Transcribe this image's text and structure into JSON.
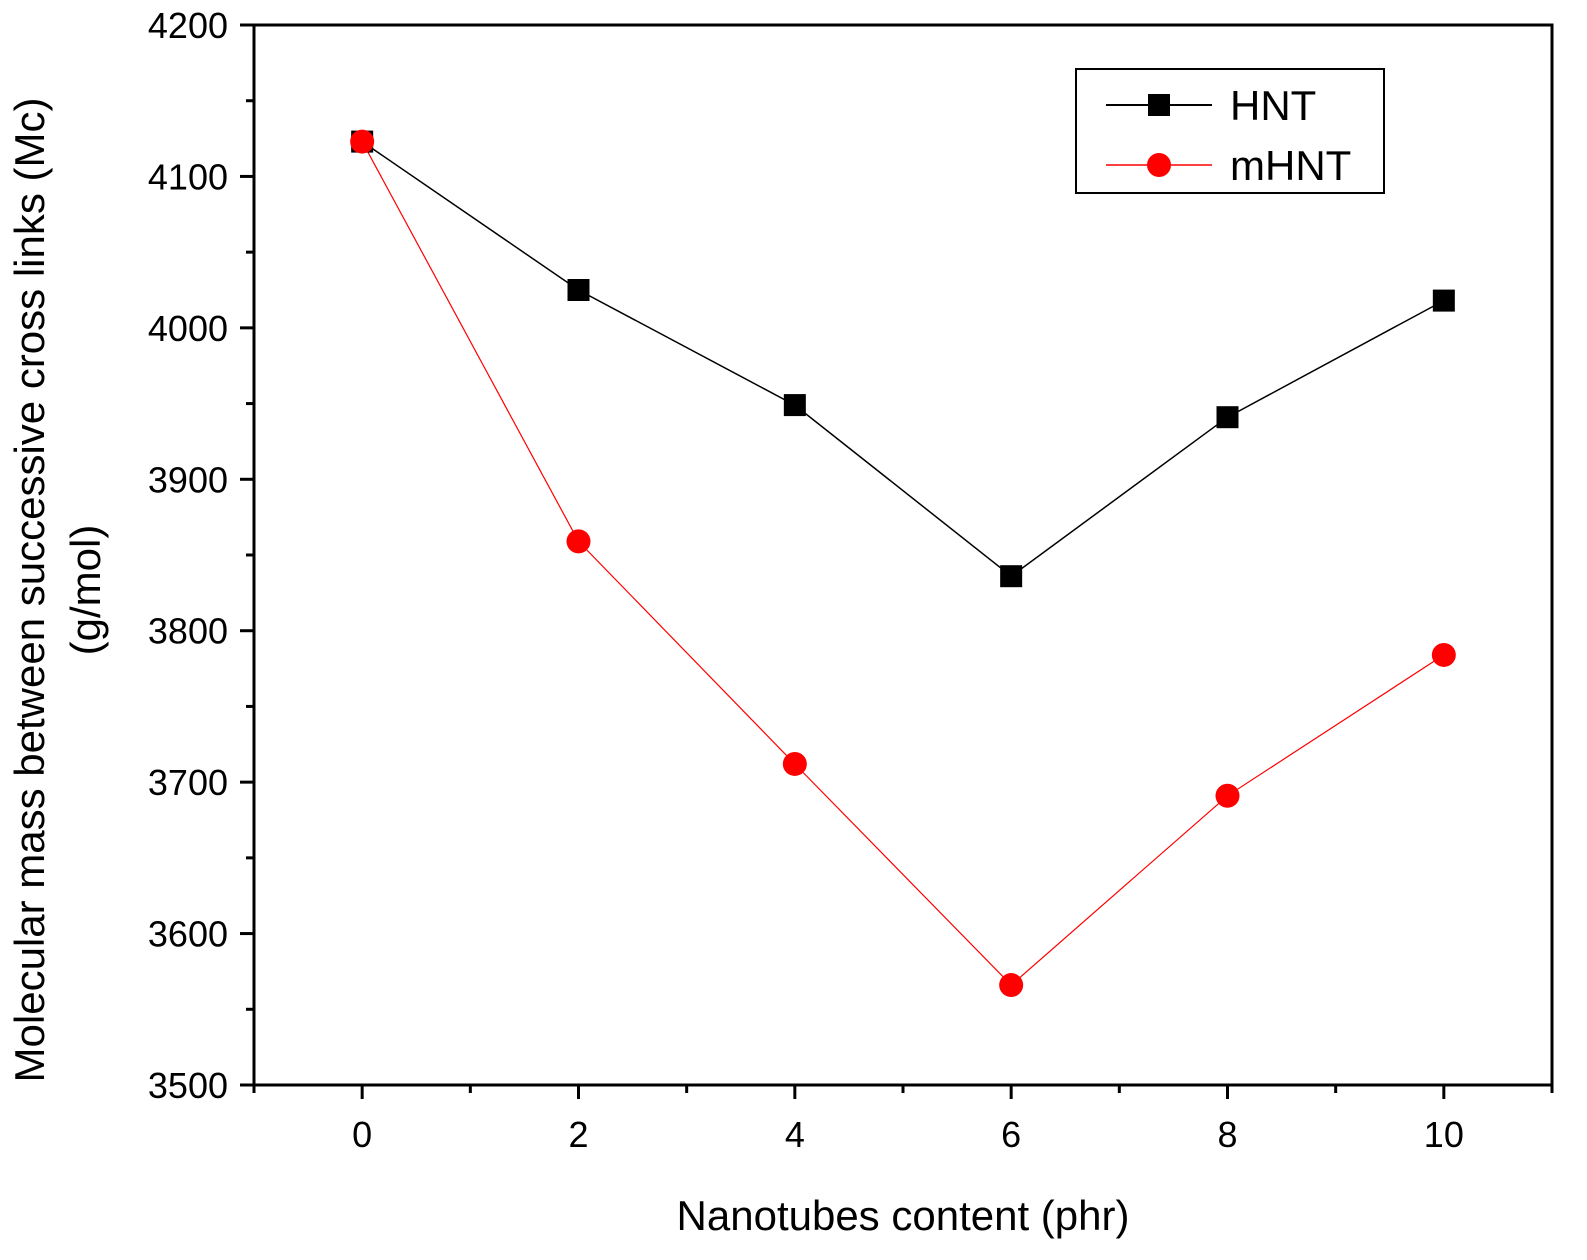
{
  "chart_data": {
    "type": "line",
    "title": "",
    "xlabel": "Nanotubes content (phr)",
    "ylabel_line1": "Molecular mass between successive cross links (Mc)",
    "ylabel_line2": "(g/mol)",
    "xlim": [
      -1,
      11
    ],
    "ylim": [
      3500,
      4200
    ],
    "xticks": [
      0,
      2,
      4,
      6,
      8,
      10
    ],
    "xtick_labels": [
      "0",
      "2",
      "4",
      "6",
      "8",
      "10"
    ],
    "xminor": [
      -1,
      1,
      3,
      5,
      7,
      9,
      11
    ],
    "yticks": [
      3500,
      3600,
      3700,
      3800,
      3900,
      4000,
      4100,
      4200
    ],
    "ytick_labels": [
      "3500",
      "3600",
      "3700",
      "3800",
      "3900",
      "4000",
      "4100",
      "4200"
    ],
    "yminor": [
      3550,
      3650,
      3750,
      3850,
      3950,
      4050,
      4150
    ],
    "grid": false,
    "legend_position": "top-right",
    "x": [
      0,
      2,
      4,
      6,
      8,
      10
    ],
    "series": [
      {
        "name": "HNT",
        "values": [
          4123,
          4025,
          3949,
          3836,
          3941,
          4018
        ],
        "color": "#000000",
        "marker": "square"
      },
      {
        "name": "mHNT",
        "values": [
          4123,
          3859,
          3712,
          3566,
          3691,
          3784
        ],
        "color": "#ff0000",
        "marker": "circle"
      }
    ]
  }
}
